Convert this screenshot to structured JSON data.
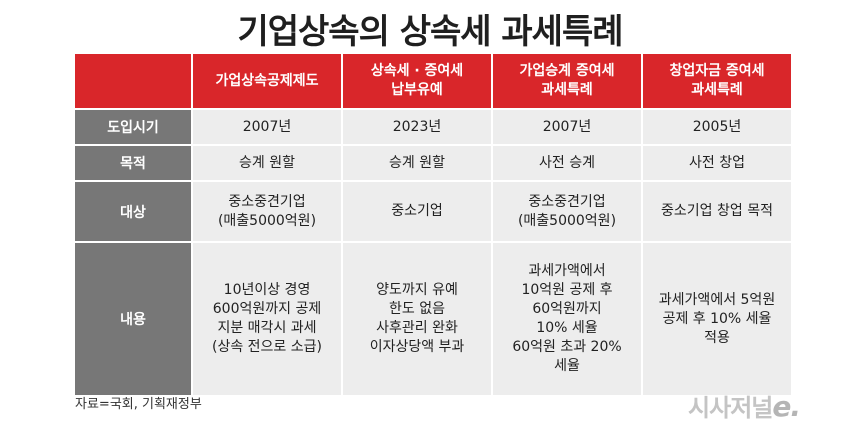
{
  "title": "기업상속의 상속세 과세특례",
  "table": {
    "corner": "",
    "headers": [
      [
        "가업상속공제제도"
      ],
      [
        "상속세 · 증여세",
        "납부유예"
      ],
      [
        "가업승계 증여세",
        "과세특례"
      ],
      [
        "창업자금 증여세",
        "과세특례"
      ]
    ],
    "rows": [
      {
        "label": "도입시기",
        "cells": [
          [
            "2007년"
          ],
          [
            "2023년"
          ],
          [
            "2007년"
          ],
          [
            "2005년"
          ]
        ]
      },
      {
        "label": "목적",
        "cells": [
          [
            "승계 원할"
          ],
          [
            "승계 원할"
          ],
          [
            "사전 승계"
          ],
          [
            "사전 창업"
          ]
        ]
      },
      {
        "label": "대상",
        "cells": [
          [
            "중소중견기업",
            "(매출5000억원)"
          ],
          [
            "중소기업"
          ],
          [
            "중소중견기업",
            "(매출5000억원)"
          ],
          [
            "중소기업 창업 목적"
          ]
        ]
      },
      {
        "label": "내용",
        "cells": [
          [
            "10년이상 경영",
            "600억원까지 공제",
            "지분 매각시 과세",
            "(상속 전으로 소급)"
          ],
          [
            "양도까지 유예",
            "한도 없음",
            "사후관리 완화",
            "이자상당액 부과"
          ],
          [
            "과세가액에서",
            "10억원 공제 후",
            "60억원까지",
            "10% 세율",
            "60억원 초과 20%",
            "세율"
          ],
          [
            "과세가액에서 5억원",
            "공제 후 10% 세율",
            "적용"
          ]
        ]
      }
    ]
  },
  "source": "자료=국회, 기획재정부",
  "logo": {
    "main": "시사저널",
    "suffix": "e."
  },
  "colors": {
    "header": "#d9262a",
    "rowlabel": "#777777",
    "cell": "#ededed"
  }
}
